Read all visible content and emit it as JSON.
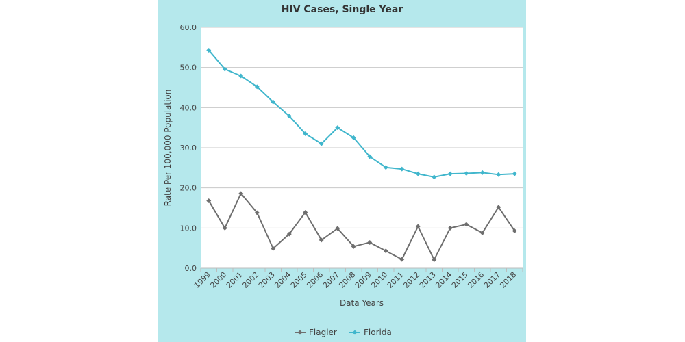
{
  "chart_data": {
    "type": "line",
    "title": "HIV Cases, Single Year",
    "xlabel": "Data Years",
    "ylabel": "Rate Per 100,000 Population",
    "categories": [
      "1999",
      "2000",
      "2001",
      "2002",
      "2003",
      "2004",
      "2005",
      "2006",
      "2007",
      "2008",
      "2009",
      "2010",
      "2011",
      "2012",
      "2013",
      "2014",
      "2015",
      "2016",
      "2017",
      "2018"
    ],
    "ylim": [
      0,
      60
    ],
    "yticks": [
      "0.0",
      "10.0",
      "20.0",
      "30.0",
      "40.0",
      "50.0",
      "60.0"
    ],
    "grid": true,
    "legend_position": "bottom",
    "series": [
      {
        "name": "Flagler",
        "color": "#6e6e6e",
        "marker": "diamond",
        "values": [
          16.8,
          10.0,
          18.6,
          13.8,
          4.9,
          8.5,
          13.9,
          7.0,
          9.9,
          5.4,
          6.4,
          4.3,
          2.2,
          10.4,
          2.1,
          10.0,
          10.9,
          8.8,
          15.2,
          9.3
        ]
      },
      {
        "name": "Florida",
        "color": "#40b6cc",
        "marker": "diamond",
        "values": [
          54.3,
          49.6,
          47.9,
          45.2,
          41.4,
          37.9,
          33.5,
          31.0,
          35.0,
          32.5,
          27.8,
          25.1,
          24.7,
          23.5,
          22.7,
          23.5,
          23.6,
          23.8,
          23.3,
          23.5
        ]
      }
    ]
  }
}
